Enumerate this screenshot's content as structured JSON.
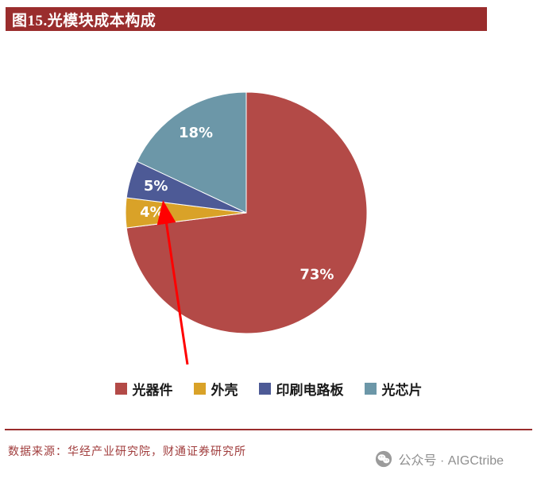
{
  "header": {
    "title": "图15.光模块成本构成"
  },
  "chart_data": {
    "type": "pie",
    "title": "光模块成本构成",
    "labels": [
      "光器件",
      "外壳",
      "印刷电路板",
      "光芯片"
    ],
    "values": [
      73,
      4,
      5,
      18
    ],
    "value_labels": [
      "73%",
      "4%",
      "5%",
      "18%"
    ],
    "colors": [
      "#B34A47",
      "#D9A228",
      "#4D5A96",
      "#6C97A8"
    ],
    "start_angle_deg": 0,
    "direction": "clockwise",
    "legend_position": "bottom",
    "annotation": {
      "type": "arrow",
      "color": "#FF0000",
      "points_to": "外壳 4% slice"
    }
  },
  "footer": {
    "source": "数据来源：华经产业研究院，财通证券研究所",
    "wechat_label": "公众号 · AIGCtribe"
  },
  "colors": {
    "header_bg": "#9A2D2D",
    "divider": "#9A2D2D",
    "source_text": "#A03C3C",
    "wechat_text": "#8F8F8F",
    "arrow": "#FF0000"
  }
}
